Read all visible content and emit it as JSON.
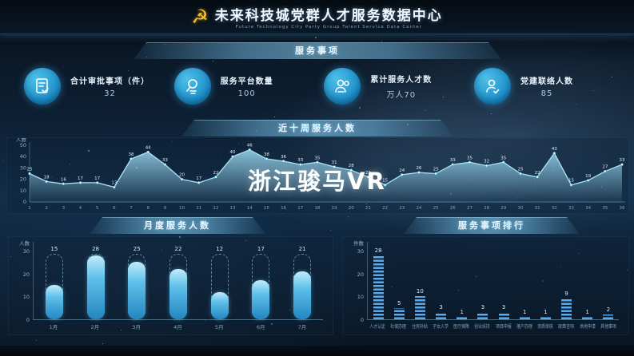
{
  "header": {
    "title": "未来科技城党群人才服务数据中心",
    "subtitle": "Future Technology City Party Group Talent Service Data Center",
    "emblem": "party-emblem-icon"
  },
  "section_banner": "服务事项",
  "stats": [
    {
      "icon": "document-check-icon",
      "label": "合计审批事项（件）",
      "value": "32"
    },
    {
      "icon": "search-report-icon",
      "label": "服务平台数量",
      "value": "100"
    },
    {
      "icon": "talent-group-icon",
      "label": "累计服务人才数",
      "value": "万人70"
    },
    {
      "icon": "member-check-icon",
      "label": "党建联络人数",
      "value": "85"
    }
  ],
  "watermark": "浙江骏马VR",
  "colors": {
    "accent": "#35a6d8",
    "area_line": "#9ddcf5",
    "bar_fill": "#4aa0e8",
    "gold": "#f2c021",
    "background": "#0d1e31"
  },
  "chart_data": [
    {
      "type": "area",
      "title": "近十周服务人数",
      "ylabel": "人数",
      "ylim": [
        0,
        50
      ],
      "yticks": [
        0,
        10,
        20,
        30,
        40,
        50
      ],
      "x": [
        "1",
        "2",
        "3",
        "4",
        "5",
        "6",
        "7",
        "8",
        "9",
        "10",
        "11",
        "12",
        "13",
        "14",
        "15",
        "16",
        "17",
        "18",
        "19",
        "20",
        "21",
        "22",
        "23",
        "24",
        "25",
        "26",
        "27",
        "28",
        "29",
        "30",
        "31",
        "32",
        "33",
        "34",
        "35",
        "36"
      ],
      "values": [
        25,
        18,
        16,
        17,
        17,
        13,
        38,
        44,
        33,
        20,
        17,
        22,
        40,
        46,
        38,
        36,
        33,
        35,
        31,
        28,
        22,
        15,
        24,
        26,
        25,
        33,
        35,
        32,
        35,
        25,
        22,
        43,
        15,
        19,
        27,
        33
      ],
      "legend_position": "none",
      "grid": false
    },
    {
      "type": "bar",
      "title": "月度服务人数",
      "ylabel": "人数",
      "ylim": [
        0,
        30
      ],
      "yticks": [
        0,
        10,
        20,
        30
      ],
      "capacity": 28,
      "categories": [
        "1月",
        "2月",
        "3月",
        "4月",
        "5月",
        "6月",
        "7月"
      ],
      "values": [
        15,
        28,
        25,
        22,
        12,
        17,
        21
      ],
      "legend_position": "none",
      "grid": false
    },
    {
      "type": "bar",
      "title": "服务事项排行",
      "ylabel": "件数",
      "ylim": [
        0,
        30
      ],
      "yticks": [
        0,
        10,
        20,
        30
      ],
      "categories": [
        "人才认定",
        "社保办理",
        "住房补贴",
        "子女入学",
        "医疗保障",
        "创业扶持",
        "项目申报",
        "落户办理",
        "资质审核",
        "政策咨询",
        "场地申请",
        "其他事项"
      ],
      "values": [
        28,
        5,
        10,
        3,
        1,
        3,
        3,
        1,
        1,
        9,
        1,
        2
      ],
      "legend_position": "none",
      "grid": false
    }
  ]
}
